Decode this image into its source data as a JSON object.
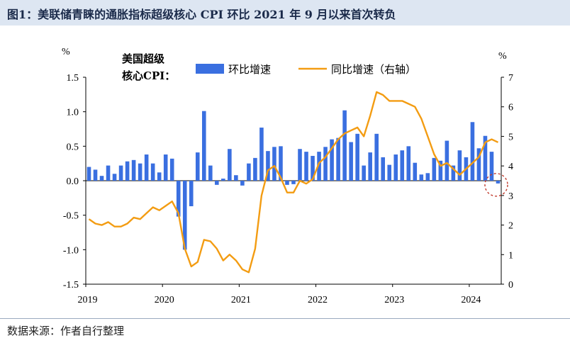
{
  "title": "图1：美联储青睐的通胀指标超级核心 CPI 环比 2021 年 9 月以来首次转负",
  "source": "数据来源：作者自行整理",
  "chart_data": {
    "type": "bar+line",
    "series_label_lines": [
      "美国超级",
      "核心CPI："
    ],
    "left_unit": "%",
    "right_unit": "%",
    "left_ylim": [
      -1.5,
      1.5
    ],
    "left_ticks": [
      "1.5",
      "1.0",
      "0.5",
      "0.0",
      "-0.5",
      "-1.0",
      "-1.5"
    ],
    "right_ylim": [
      0,
      7
    ],
    "right_ticks": [
      "7",
      "6",
      "5",
      "4",
      "3",
      "2",
      "1",
      "0"
    ],
    "x_ticks": [
      "2019",
      "2020",
      "2021",
      "2022",
      "2023",
      "2024"
    ],
    "series": [
      {
        "name": "环比增速",
        "type": "bar",
        "axis": "left",
        "color": "#3a6fe0",
        "values": [
          0.2,
          0.16,
          0.07,
          0.22,
          0.1,
          0.22,
          0.28,
          0.3,
          0.25,
          0.38,
          0.25,
          0.12,
          0.38,
          0.32,
          -0.52,
          -1.0,
          -0.37,
          0.41,
          1.01,
          0.22,
          -0.06,
          0.03,
          0.46,
          0.08,
          -0.07,
          0.25,
          0.33,
          0.77,
          0.43,
          0.49,
          0.5,
          -0.06,
          -0.05,
          0.46,
          0.42,
          0.36,
          0.42,
          0.49,
          0.6,
          0.62,
          1.02,
          0.56,
          0.68,
          0.22,
          0.41,
          0.68,
          0.34,
          0.23,
          0.38,
          0.44,
          0.5,
          0.26,
          0.09,
          0.11,
          0.33,
          0.29,
          0.58,
          0.22,
          0.44,
          0.34,
          0.85,
          0.47,
          0.65,
          0.42,
          -0.04
        ]
      },
      {
        "name": "同比增速（右轴）",
        "type": "line",
        "axis": "right",
        "color": "#f39c12",
        "values": [
          2.2,
          2.05,
          2.0,
          2.1,
          1.95,
          1.95,
          2.05,
          2.25,
          2.2,
          2.4,
          2.6,
          2.5,
          2.65,
          2.8,
          2.4,
          1.2,
          0.6,
          0.75,
          1.5,
          1.45,
          1.2,
          0.8,
          1.0,
          0.8,
          0.5,
          0.4,
          1.2,
          3.0,
          3.85,
          4.0,
          3.6,
          3.1,
          3.1,
          3.5,
          3.4,
          3.55,
          4.1,
          4.3,
          4.6,
          4.9,
          5.1,
          5.2,
          5.3,
          5.0,
          5.7,
          6.5,
          6.4,
          6.2,
          6.2,
          6.2,
          6.1,
          6.0,
          5.6,
          5.0,
          4.4,
          4.0,
          4.1,
          3.9,
          3.7,
          3.9,
          4.1,
          4.3,
          4.8,
          4.9,
          4.8
        ]
      }
    ],
    "annotation": "dashed red circle around the last (negative) bar"
  }
}
